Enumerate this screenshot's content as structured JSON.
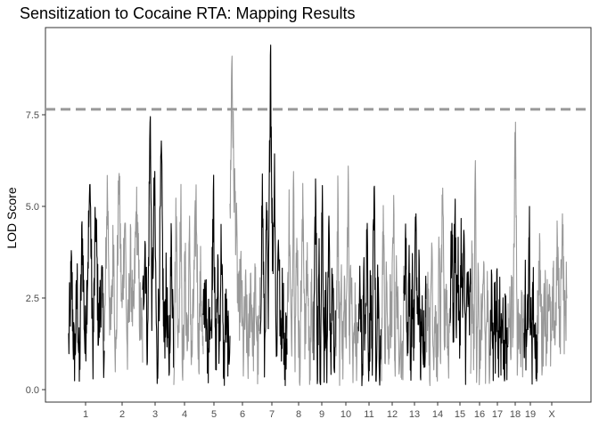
{
  "chart_data": {
    "type": "line",
    "title": "Sensitization to Cocaine RTA: Mapping Results",
    "xlabel": "",
    "ylabel": "LOD Score",
    "ylim": [
      0,
      10
    ],
    "yticks": [
      0.0,
      2.5,
      5.0,
      7.5
    ],
    "ytick_labels": [
      "0.0",
      "2.5",
      "5.0",
      "7.5"
    ],
    "threshold": 7.65,
    "threshold_style": "dashed",
    "chromosome_labels": [
      "1",
      "2",
      "3",
      "4",
      "5",
      "6",
      "7",
      "8",
      "9",
      "10",
      "11",
      "12",
      "13",
      "14",
      "15",
      "16",
      "17",
      "18",
      "19",
      "X"
    ],
    "chromosomes": [
      {
        "label": "1",
        "color": "#000000",
        "peak": 5.6,
        "points": [
          [
            0,
            1.2
          ],
          [
            0.08,
            3.2
          ],
          [
            0.16,
            0.6
          ],
          [
            0.24,
            2.8
          ],
          [
            0.3,
            0.3
          ],
          [
            0.38,
            4.4
          ],
          [
            0.46,
            1.1
          ],
          [
            0.54,
            3.6
          ],
          [
            0.6,
            5.6
          ],
          [
            0.68,
            0.8
          ],
          [
            0.76,
            4.8
          ],
          [
            0.84,
            1.5
          ],
          [
            0.92,
            3.0
          ],
          [
            1,
            1.0
          ]
        ]
      },
      {
        "label": "2",
        "color": "#999999",
        "peak": 5.9,
        "points": [
          [
            0,
            1.0
          ],
          [
            0.08,
            5.6
          ],
          [
            0.16,
            1.2
          ],
          [
            0.24,
            4.2
          ],
          [
            0.3,
            0.5
          ],
          [
            0.38,
            5.9
          ],
          [
            0.46,
            2.0
          ],
          [
            0.54,
            4.8
          ],
          [
            0.6,
            0.8
          ],
          [
            0.68,
            3.6
          ],
          [
            0.76,
            1.6
          ],
          [
            0.84,
            5.2
          ],
          [
            0.92,
            2.2
          ],
          [
            1,
            1.4
          ]
        ]
      },
      {
        "label": "3",
        "color": "#000000",
        "peak": 7.45,
        "points": [
          [
            0,
            2.0
          ],
          [
            0.08,
            4.2
          ],
          [
            0.16,
            1.0
          ],
          [
            0.24,
            7.45
          ],
          [
            0.3,
            2.2
          ],
          [
            0.38,
            5.6
          ],
          [
            0.46,
            0.4
          ],
          [
            0.54,
            3.2
          ],
          [
            0.6,
            6.3
          ],
          [
            0.68,
            1.2
          ],
          [
            0.76,
            2.8
          ],
          [
            0.84,
            0.3
          ],
          [
            0.92,
            4.0
          ],
          [
            1,
            1.2
          ]
        ]
      },
      {
        "label": "4",
        "color": "#999999",
        "peak": 5.6,
        "points": [
          [
            0,
            0.6
          ],
          [
            0.08,
            4.8
          ],
          [
            0.16,
            0.9
          ],
          [
            0.24,
            5.6
          ],
          [
            0.3,
            0.15
          ],
          [
            0.38,
            3.4
          ],
          [
            0.46,
            1.0
          ],
          [
            0.54,
            4.1
          ],
          [
            0.6,
            0.5
          ],
          [
            0.68,
            2.6
          ],
          [
            0.76,
            5.2
          ],
          [
            0.84,
            1.0
          ],
          [
            0.92,
            3.2
          ],
          [
            1,
            0.6
          ]
        ]
      },
      {
        "label": "5",
        "color": "#000000",
        "peak": 5.85,
        "points": [
          [
            0,
            1.6
          ],
          [
            0.08,
            3.0
          ],
          [
            0.16,
            0.4
          ],
          [
            0.24,
            2.6
          ],
          [
            0.3,
            1.2
          ],
          [
            0.38,
            5.85
          ],
          [
            0.46,
            0.5
          ],
          [
            0.54,
            3.2
          ],
          [
            0.6,
            1.0
          ],
          [
            0.68,
            4.3
          ],
          [
            0.76,
            0.2
          ],
          [
            0.84,
            2.2
          ],
          [
            0.92,
            0.9
          ],
          [
            1,
            1.8
          ]
        ]
      },
      {
        "label": "6",
        "color": "#999999",
        "peak": 9.1,
        "points": [
          [
            0,
            4.2
          ],
          [
            0.06,
            9.1
          ],
          [
            0.12,
            6.0
          ],
          [
            0.2,
            4.5
          ],
          [
            0.28,
            2.0
          ],
          [
            0.36,
            3.0
          ],
          [
            0.44,
            1.0
          ],
          [
            0.52,
            2.4
          ],
          [
            0.6,
            0.6
          ],
          [
            0.68,
            3.1
          ],
          [
            0.76,
            1.2
          ],
          [
            0.84,
            2.8
          ],
          [
            0.92,
            0.8
          ],
          [
            1,
            2.2
          ]
        ]
      },
      {
        "label": "7",
        "color": "#000000",
        "peak": 9.4,
        "points": [
          [
            0,
            1.8
          ],
          [
            0.08,
            5.5
          ],
          [
            0.16,
            0.7
          ],
          [
            0.24,
            4.8
          ],
          [
            0.3,
            1.6
          ],
          [
            0.38,
            9.4
          ],
          [
            0.46,
            3.4
          ],
          [
            0.54,
            6.2
          ],
          [
            0.6,
            0.5
          ],
          [
            0.68,
            4.6
          ],
          [
            0.76,
            1.0
          ],
          [
            0.84,
            2.8
          ],
          [
            0.92,
            0.6
          ],
          [
            1,
            2.0
          ]
        ]
      },
      {
        "label": "8",
        "color": "#999999",
        "peak": 5.95,
        "points": [
          [
            0,
            1.2
          ],
          [
            0.08,
            4.8
          ],
          [
            0.16,
            0.8
          ],
          [
            0.24,
            5.95
          ],
          [
            0.3,
            1.4
          ],
          [
            0.38,
            4.2
          ],
          [
            0.46,
            0.5
          ],
          [
            0.54,
            3.0
          ],
          [
            0.6,
            5.0
          ],
          [
            0.68,
            1.2
          ],
          [
            0.76,
            3.6
          ],
          [
            0.84,
            0.7
          ],
          [
            0.92,
            2.4
          ],
          [
            1,
            1.0
          ]
        ]
      },
      {
        "label": "9",
        "color": "#000000",
        "peak": 5.75,
        "points": [
          [
            0,
            1.4
          ],
          [
            0.08,
            5.75
          ],
          [
            0.16,
            0.9
          ],
          [
            0.24,
            3.2
          ],
          [
            0.3,
            0.3
          ],
          [
            0.38,
            5.6
          ],
          [
            0.46,
            1.0
          ],
          [
            0.54,
            2.6
          ],
          [
            0.6,
            0.2
          ],
          [
            0.68,
            4.2
          ],
          [
            0.76,
            1.0
          ],
          [
            0.84,
            3.0
          ],
          [
            0.92,
            0.6
          ],
          [
            1,
            1.4
          ]
        ]
      },
      {
        "label": "10",
        "color": "#999999",
        "peak": 6.1,
        "points": [
          [
            0,
            1.6
          ],
          [
            0.08,
            4.8
          ],
          [
            0.16,
            1.0
          ],
          [
            0.24,
            3.4
          ],
          [
            0.3,
            0.5
          ],
          [
            0.38,
            2.8
          ],
          [
            0.46,
            1.2
          ],
          [
            0.54,
            6.1
          ],
          [
            0.6,
            1.5
          ],
          [
            0.68,
            3.2
          ],
          [
            0.76,
            0.4
          ],
          [
            0.84,
            2.2
          ],
          [
            0.92,
            0.9
          ],
          [
            1,
            1.8
          ]
        ]
      },
      {
        "label": "11",
        "color": "#000000",
        "peak": 5.55,
        "points": [
          [
            0,
            1.0
          ],
          [
            0.08,
            3.2
          ],
          [
            0.16,
            0.5
          ],
          [
            0.24,
            2.8
          ],
          [
            0.3,
            1.0
          ],
          [
            0.38,
            4.5
          ],
          [
            0.46,
            0.2
          ],
          [
            0.54,
            3.4
          ],
          [
            0.6,
            1.2
          ],
          [
            0.68,
            5.55
          ],
          [
            0.76,
            0.6
          ],
          [
            0.84,
            2.6
          ],
          [
            0.92,
            0.2
          ],
          [
            1,
            1.4
          ]
        ]
      },
      {
        "label": "12",
        "color": "#999999",
        "peak": 5.3,
        "points": [
          [
            0,
            0.8
          ],
          [
            0.08,
            4.8
          ],
          [
            0.16,
            1.0
          ],
          [
            0.24,
            3.2
          ],
          [
            0.3,
            0.4
          ],
          [
            0.38,
            2.4
          ],
          [
            0.46,
            1.6
          ],
          [
            0.54,
            5.3
          ],
          [
            0.6,
            0.7
          ],
          [
            0.68,
            3.4
          ],
          [
            0.76,
            1.0
          ],
          [
            0.84,
            2.0
          ],
          [
            0.92,
            0.3
          ],
          [
            1,
            2.4
          ]
        ]
      },
      {
        "label": "13",
        "color": "#000000",
        "peak": 4.8,
        "points": [
          [
            0,
            2.2
          ],
          [
            0.08,
            4.3
          ],
          [
            0.16,
            1.0
          ],
          [
            0.24,
            3.6
          ],
          [
            0.3,
            0.6
          ],
          [
            0.38,
            2.8
          ],
          [
            0.46,
            1.4
          ],
          [
            0.54,
            4.8
          ],
          [
            0.6,
            1.8
          ],
          [
            0.68,
            3.0
          ],
          [
            0.76,
            0.7
          ],
          [
            0.84,
            2.2
          ],
          [
            0.92,
            1.2
          ],
          [
            1,
            2.6
          ]
        ]
      },
      {
        "label": "14",
        "color": "#999999",
        "peak": 5.5,
        "points": [
          [
            0,
            1.6
          ],
          [
            0.08,
            3.0
          ],
          [
            0.16,
            0.5
          ],
          [
            0.24,
            4.4
          ],
          [
            0.3,
            1.0
          ],
          [
            0.38,
            2.4
          ],
          [
            0.46,
            0.3
          ],
          [
            0.54,
            3.6
          ],
          [
            0.6,
            1.2
          ],
          [
            0.68,
            5.5
          ],
          [
            0.76,
            1.4
          ],
          [
            0.84,
            3.0
          ],
          [
            0.92,
            0.8
          ],
          [
            1,
            2.6
          ]
        ]
      },
      {
        "label": "15",
        "color": "#000000",
        "peak": 5.2,
        "points": [
          [
            0,
            2.0
          ],
          [
            0.08,
            4.4
          ],
          [
            0.16,
            1.6
          ],
          [
            0.24,
            5.2
          ],
          [
            0.3,
            2.2
          ],
          [
            0.38,
            3.4
          ],
          [
            0.46,
            1.0
          ],
          [
            0.54,
            4.2
          ],
          [
            0.6,
            2.0
          ],
          [
            0.68,
            3.8
          ],
          [
            0.76,
            0.8
          ],
          [
            0.84,
            3.2
          ],
          [
            0.92,
            1.6
          ],
          [
            1,
            2.8
          ]
        ]
      },
      {
        "label": "16",
        "color": "#999999",
        "peak": 6.25,
        "points": [
          [
            0,
            1.0
          ],
          [
            0.08,
            3.6
          ],
          [
            0.16,
            0.5
          ],
          [
            0.24,
            6.25
          ],
          [
            0.3,
            1.0
          ],
          [
            0.38,
            3.0
          ],
          [
            0.46,
            0.3
          ],
          [
            0.54,
            2.4
          ],
          [
            0.6,
            1.2
          ],
          [
            0.68,
            3.4
          ],
          [
            0.76,
            0.6
          ],
          [
            0.84,
            2.6
          ],
          [
            0.92,
            1.0
          ],
          [
            1,
            1.6
          ]
        ]
      },
      {
        "label": "17",
        "color": "#000000",
        "peak": 3.3,
        "points": [
          [
            0,
            1.4
          ],
          [
            0.08,
            3.0
          ],
          [
            0.16,
            0.6
          ],
          [
            0.24,
            2.4
          ],
          [
            0.3,
            1.2
          ],
          [
            0.38,
            3.3
          ],
          [
            0.46,
            0.7
          ],
          [
            0.54,
            2.2
          ],
          [
            0.6,
            1.0
          ],
          [
            0.68,
            2.8
          ],
          [
            0.76,
            0.4
          ],
          [
            0.84,
            1.8
          ],
          [
            0.92,
            0.9
          ],
          [
            1,
            1.6
          ]
        ]
      },
      {
        "label": "18",
        "color": "#999999",
        "peak": 7.3,
        "points": [
          [
            0,
            1.8
          ],
          [
            0.08,
            2.8
          ],
          [
            0.16,
            0.9
          ],
          [
            0.24,
            3.4
          ],
          [
            0.3,
            1.2
          ],
          [
            0.38,
            4.6
          ],
          [
            0.46,
            7.3
          ],
          [
            0.54,
            2.6
          ],
          [
            0.6,
            0.6
          ],
          [
            0.68,
            3.0
          ],
          [
            0.76,
            1.0
          ],
          [
            0.84,
            2.4
          ],
          [
            0.92,
            0.8
          ],
          [
            1,
            1.6
          ]
        ]
      },
      {
        "label": "19",
        "color": "#000000",
        "peak": 5.0,
        "points": [
          [
            0,
            1.2
          ],
          [
            0.08,
            3.0
          ],
          [
            0.16,
            0.4
          ],
          [
            0.24,
            2.6
          ],
          [
            0.3,
            1.0
          ],
          [
            0.38,
            5.0
          ],
          [
            0.46,
            0.3
          ],
          [
            0.54,
            2.2
          ],
          [
            0.6,
            1.2
          ],
          [
            0.68,
            3.2
          ],
          [
            0.76,
            0.5
          ],
          [
            0.84,
            2.0
          ],
          [
            0.92,
            0.8
          ],
          [
            1,
            1.4
          ]
        ]
      },
      {
        "label": "X",
        "color": "#999999",
        "peak": 4.8,
        "points": [
          [
            0,
            2.0
          ],
          [
            0.08,
            3.4
          ],
          [
            0.16,
            1.0
          ],
          [
            0.24,
            2.8
          ],
          [
            0.3,
            1.6
          ],
          [
            0.38,
            3.0
          ],
          [
            0.46,
            0.9
          ],
          [
            0.54,
            2.6
          ],
          [
            0.6,
            1.4
          ],
          [
            0.68,
            4.0
          ],
          [
            0.76,
            1.2
          ],
          [
            0.84,
            4.8
          ],
          [
            0.92,
            1.6
          ],
          [
            1,
            2.8
          ]
        ]
      }
    ],
    "grid": false,
    "legend": "none",
    "colors": {
      "odd": "#000000",
      "even": "#999999",
      "threshold": "#999999",
      "axis": "#333333",
      "tick_text": "#4d4d4d"
    }
  }
}
